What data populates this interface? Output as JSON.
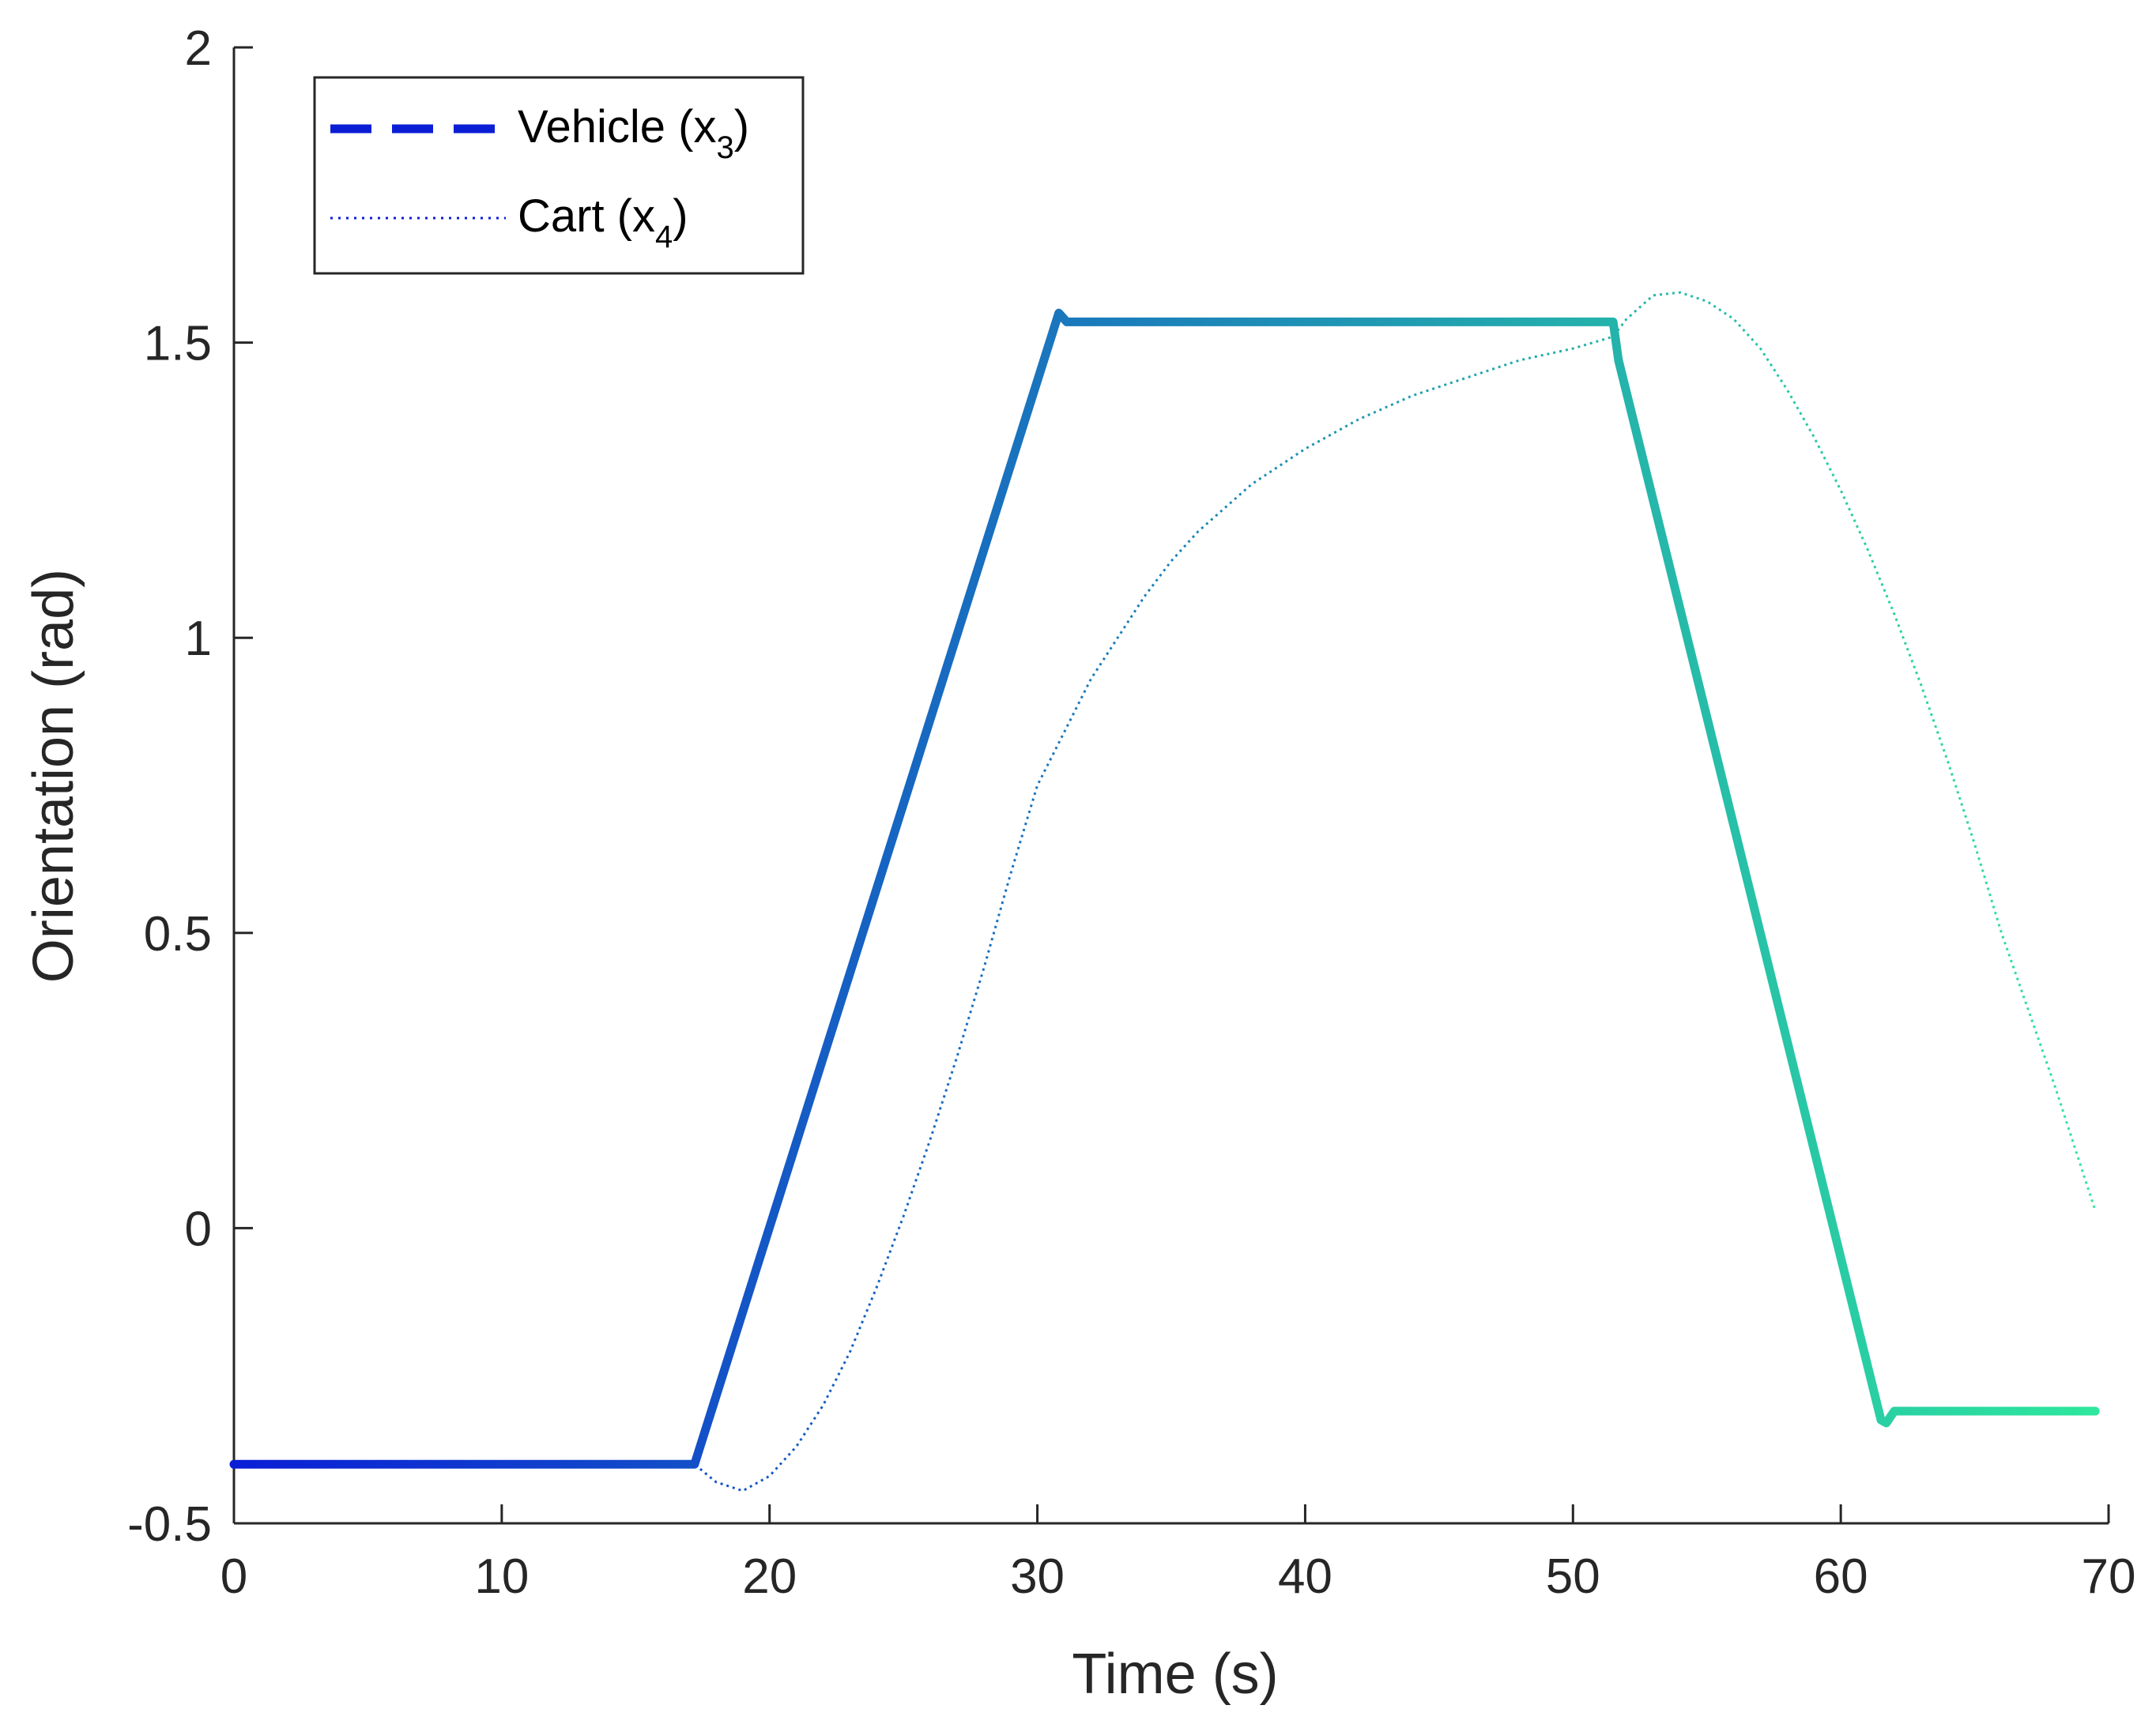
{
  "chart_data": {
    "type": "line",
    "xlabel": "Time (s)",
    "ylabel": "Orientation (rad)",
    "xlim": [
      0,
      70
    ],
    "ylim": [
      -0.5,
      2
    ],
    "x_ticks": [
      0,
      10,
      20,
      30,
      40,
      50,
      60,
      70
    ],
    "x_tick_labels": [
      "0",
      "10",
      "20",
      "30",
      "40",
      "50",
      "60",
      "70"
    ],
    "y_ticks": [
      -0.5,
      0,
      0.5,
      1,
      1.5,
      2
    ],
    "y_tick_labels": [
      "-0.5",
      "0",
      "0.5",
      "1",
      "1.5",
      "2"
    ],
    "grid": false,
    "legend_position": "top-left",
    "colors": {
      "start": "#0a1ed6",
      "end": "#2ee89c",
      "axis": "#262626"
    },
    "series": [
      {
        "name": "Vehicle",
        "legend_label": "Vehicle (x",
        "legend_subscript": "3",
        "legend_close": ")",
        "style": "dashed",
        "x": [
          0,
          17.2,
          30.8,
          31.1,
          31.4,
          51.5,
          51.7,
          61.5,
          61.7,
          62,
          69.5
        ],
        "y": [
          -0.4,
          -0.4,
          1.55,
          1.535,
          1.535,
          1.535,
          1.47,
          -0.325,
          -0.33,
          -0.31,
          -0.31
        ]
      },
      {
        "name": "Cart",
        "legend_label": "Cart (x",
        "legend_subscript": "4",
        "legend_close": ")",
        "style": "dotted",
        "x": [
          0,
          17.2,
          18,
          19,
          20,
          21,
          22,
          23,
          24,
          25,
          26,
          27,
          28,
          29,
          30,
          31,
          32,
          33,
          34,
          35,
          36,
          38,
          40,
          42,
          44,
          46,
          48,
          50,
          51.5,
          52,
          53,
          54,
          55,
          56,
          57,
          58,
          59,
          60,
          61,
          62,
          63,
          64,
          65,
          66,
          67,
          68,
          69,
          69.5
        ],
        "y": [
          -0.4,
          -0.4,
          -0.43,
          -0.445,
          -0.42,
          -0.37,
          -0.3,
          -0.21,
          -0.1,
          0.02,
          0.15,
          0.29,
          0.44,
          0.6,
          0.75,
          0.84,
          0.93,
          1.0,
          1.07,
          1.13,
          1.18,
          1.26,
          1.32,
          1.37,
          1.41,
          1.44,
          1.47,
          1.49,
          1.51,
          1.54,
          1.58,
          1.585,
          1.57,
          1.54,
          1.49,
          1.42,
          1.34,
          1.25,
          1.15,
          1.04,
          0.92,
          0.79,
          0.65,
          0.5,
          0.37,
          0.24,
          0.1,
          0.03
        ]
      }
    ]
  }
}
